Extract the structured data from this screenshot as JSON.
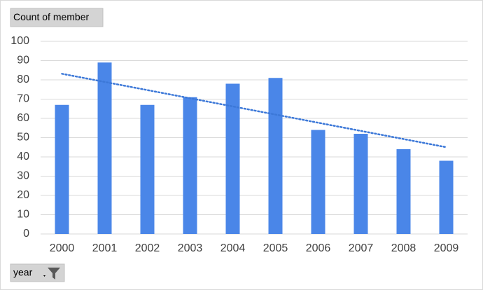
{
  "chart_data": {
    "type": "bar",
    "value_field": "Count of member",
    "axis_field": "year",
    "categories": [
      "2000",
      "2001",
      "2002",
      "2003",
      "2004",
      "2005",
      "2006",
      "2007",
      "2008",
      "2009"
    ],
    "values": [
      67,
      89,
      67,
      71,
      78,
      81,
      54,
      52,
      44,
      38
    ],
    "color": "#4a86e8",
    "trendline": "linear",
    "trendline_color": "#3c78d8",
    "ylim": [
      0,
      100
    ],
    "yticks": [
      0,
      10,
      20,
      30,
      40,
      50,
      60,
      70,
      80,
      90,
      100
    ],
    "grid": true
  }
}
